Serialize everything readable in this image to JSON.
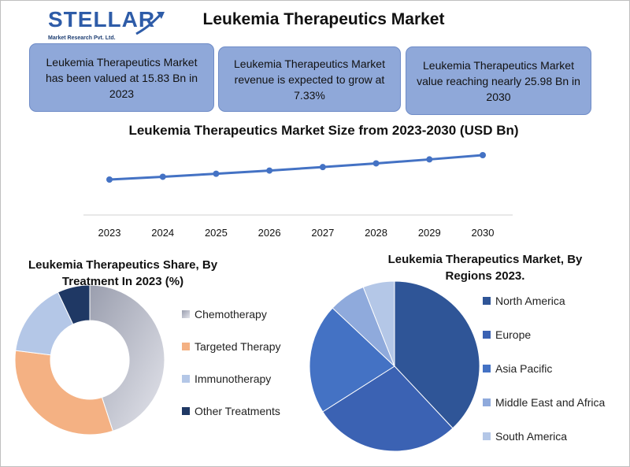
{
  "header": {
    "logo_word": "STELLAR",
    "logo_sub": "Market Research Pvt. Ltd.",
    "title": "Leukemia Therapeutics Market"
  },
  "stats": {
    "valued": "Leukemia Therapeutics Market has been valued at 15.83 Bn in 2023",
    "growth": "Leukemia Therapeutics Market revenue is expected to grow at 7.33%",
    "forecast": "Leukemia Therapeutics Market value reaching nearly 25.98 Bn in 2030"
  },
  "colors": {
    "stat_box": "#8fa8d9",
    "line": "#4472c4",
    "chemotherapy": "#b3b6c4",
    "targeted_therapy": "#f4b183",
    "immunotherapy": "#b4c7e7",
    "other_treatments": "#1f3864",
    "north_america": "#2f5597",
    "europe": "#3b62b3",
    "asia_pacific": "#4472c4",
    "mea": "#8faadc",
    "south_america": "#b4c7e7"
  },
  "chart_data": [
    {
      "type": "line",
      "title": "Leukemia Therapeutics Market Size from 2023-2030 (USD Bn)",
      "x": [
        "2023",
        "2024",
        "2025",
        "2026",
        "2027",
        "2028",
        "2029",
        "2030"
      ],
      "values": [
        15.83,
        16.99,
        18.24,
        19.57,
        21.01,
        22.55,
        24.2,
        25.98
      ],
      "ylim": [
        0,
        30
      ],
      "grid": false
    },
    {
      "type": "pie",
      "title": "Leukemia Therapeutics Share, By Treatment In 2023  (%)",
      "donut": true,
      "categories": [
        "Chemotherapy",
        "Targeted Therapy",
        "Immunotherapy",
        "Other Treatments"
      ],
      "values": [
        45,
        32,
        16,
        7
      ],
      "legend": "right"
    },
    {
      "type": "pie",
      "title": "Leukemia Therapeutics Market, By Regions 2023.",
      "categories": [
        "North America",
        "Europe",
        "Asia Pacific",
        "Middle East and Africa",
        "South America"
      ],
      "values": [
        38,
        28,
        21,
        7,
        6
      ],
      "legend": "right"
    }
  ]
}
